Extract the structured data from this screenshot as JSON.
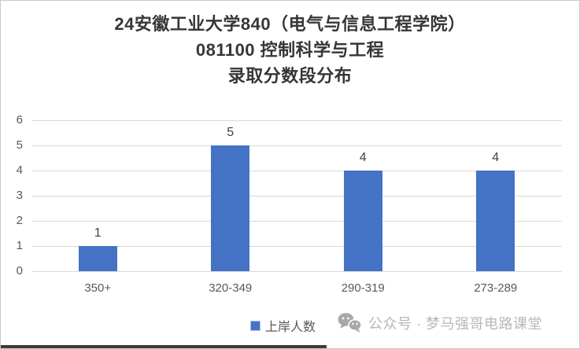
{
  "title": {
    "line1": "24安徽工业大学840（电气与信息工程学院）",
    "line2": "081100 控制科学与工程",
    "line3": "录取分数段分布"
  },
  "chart_data": {
    "type": "bar",
    "title": "24安徽工业大学840（电气与信息工程学院）081100 控制科学与工程 录取分数段分布",
    "categories": [
      "350+",
      "320-349",
      "290-319",
      "273-289"
    ],
    "series": [
      {
        "name": "上岸人数",
        "values": [
          1,
          5,
          4,
          4
        ]
      }
    ],
    "data_labels": [
      "1",
      "5",
      "4",
      "4"
    ],
    "xlabel": "",
    "ylabel": "",
    "ylim": [
      0,
      6
    ],
    "yticks": [
      0,
      1,
      2,
      3,
      4,
      5,
      6
    ],
    "grid": true,
    "legend_position": "bottom",
    "bar_color": "#4472C4"
  },
  "legend": {
    "label": "上岸人数",
    "swatch_color": "#4472C4"
  },
  "watermark": {
    "icon": "wechat-icon",
    "text": "公众号 · 梦马强哥电路课堂"
  },
  "colors": {
    "bar": "#4472C4",
    "gridline": "#D9D9D9",
    "axis_text": "#595959",
    "title_text": "#363636",
    "watermark_text": "#B7B7B7"
  }
}
